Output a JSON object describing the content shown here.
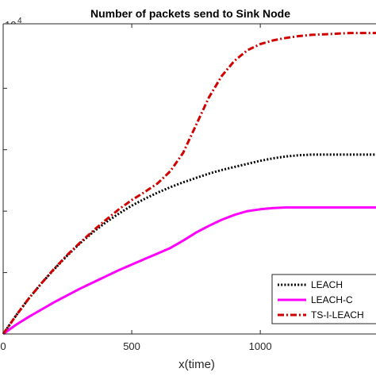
{
  "chart_data": {
    "type": "line",
    "title": "Number of packets send to Sink Node",
    "xlabel": "x(time)",
    "ylabel": "",
    "y_exponent_base": "10",
    "y_exponent_power": "4",
    "xlim": [
      0,
      1450
    ],
    "ylim": [
      0,
      5.05
    ],
    "x_ticks": [
      0,
      500,
      1000
    ],
    "x_tick_labels": [
      "0",
      "500",
      "1000"
    ],
    "y_ticks": [
      1,
      2,
      3,
      4
    ],
    "grid": false,
    "legend_position": "bottom-right",
    "series": [
      {
        "name": "LEACH",
        "color": "#000000",
        "dash": "dotted",
        "x": [
          0,
          50,
          100,
          150,
          200,
          250,
          300,
          350,
          400,
          450,
          500,
          550,
          600,
          650,
          700,
          750,
          800,
          850,
          900,
          950,
          1000,
          1050,
          1100,
          1150,
          1200,
          1250,
          1300,
          1350,
          1400,
          1450
        ],
        "y": [
          0.0,
          0.3,
          0.58,
          0.83,
          1.06,
          1.28,
          1.48,
          1.66,
          1.82,
          1.96,
          2.09,
          2.2,
          2.3,
          2.39,
          2.47,
          2.54,
          2.61,
          2.67,
          2.72,
          2.77,
          2.82,
          2.86,
          2.89,
          2.91,
          2.92,
          2.92,
          2.92,
          2.92,
          2.92,
          2.92
        ]
      },
      {
        "name": "LEACH-C",
        "color": "#ff00ff",
        "dash": "solid",
        "x": [
          0,
          50,
          100,
          150,
          200,
          250,
          300,
          350,
          400,
          450,
          500,
          550,
          600,
          650,
          700,
          750,
          800,
          850,
          900,
          950,
          1000,
          1050,
          1100,
          1150,
          1200,
          1250,
          1300,
          1350,
          1400,
          1450
        ],
        "y": [
          0.0,
          0.15,
          0.28,
          0.4,
          0.52,
          0.63,
          0.74,
          0.84,
          0.94,
          1.04,
          1.13,
          1.22,
          1.31,
          1.4,
          1.52,
          1.65,
          1.76,
          1.86,
          1.94,
          2.0,
          2.03,
          2.05,
          2.06,
          2.06,
          2.06,
          2.06,
          2.06,
          2.06,
          2.06,
          2.06
        ]
      },
      {
        "name": "TS-I-LEACH",
        "color": "#d00000",
        "dash": "dashdot",
        "x": [
          0,
          50,
          100,
          150,
          200,
          250,
          300,
          350,
          400,
          450,
          500,
          550,
          600,
          650,
          700,
          750,
          800,
          850,
          900,
          950,
          1000,
          1050,
          1100,
          1150,
          1200,
          1250,
          1300,
          1350,
          1400,
          1450
        ],
        "y": [
          0.0,
          0.3,
          0.58,
          0.83,
          1.07,
          1.29,
          1.49,
          1.68,
          1.86,
          2.03,
          2.18,
          2.31,
          2.45,
          2.65,
          2.95,
          3.4,
          3.85,
          4.2,
          4.45,
          4.62,
          4.72,
          4.78,
          4.82,
          4.85,
          4.87,
          4.88,
          4.89,
          4.9,
          4.9,
          4.9
        ]
      }
    ]
  }
}
